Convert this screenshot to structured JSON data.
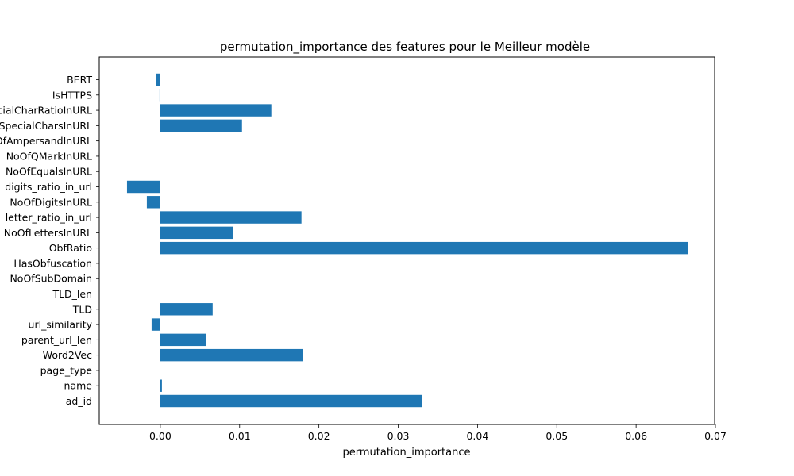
{
  "chart_data": {
    "type": "bar",
    "orientation": "horizontal",
    "title": "permutation_importance des features pour le Meilleur modèle",
    "xlabel": "permutation_importance",
    "ylabel": "",
    "xlim": [
      -0.0077,
      0.0699
    ],
    "xticks": [
      0.0,
      0.01,
      0.02,
      0.03,
      0.04,
      0.05,
      0.06,
      0.07
    ],
    "xtick_labels": [
      "0.00",
      "0.01",
      "0.02",
      "0.03",
      "0.04",
      "0.05",
      "0.06",
      "0.07"
    ],
    "categories": [
      "BERT",
      "IsHTTPS",
      "SpacialCharRatioInURL",
      "NoOfOtherSpecialCharsInURL",
      "NoOfAmpersandInURL",
      "NoOfQMarkInURL",
      "NoOfEqualsInURL",
      "digits_ratio_in_url",
      "NoOfDigitsInURL",
      "letter_ratio_in_url",
      "NoOfLettersInURL",
      "ObfRatio",
      "HasObfuscation",
      "NoOfSubDomain",
      "TLD_len",
      "TLD",
      "url_similarity",
      "parent_url_len",
      "Word2Vec",
      "page_type",
      "name",
      "ad_id"
    ],
    "values": [
      -0.0005,
      -0.0001,
      0.014,
      0.0103,
      0.0,
      0.0,
      0.0,
      -0.0042,
      -0.0017,
      0.0178,
      0.0092,
      0.0665,
      0.0,
      0.0,
      0.0,
      0.0066,
      -0.0011,
      0.0058,
      0.018,
      0.0,
      0.0002,
      0.033
    ],
    "bar_color": "#1f77b4",
    "grid": false,
    "legend": "none"
  }
}
